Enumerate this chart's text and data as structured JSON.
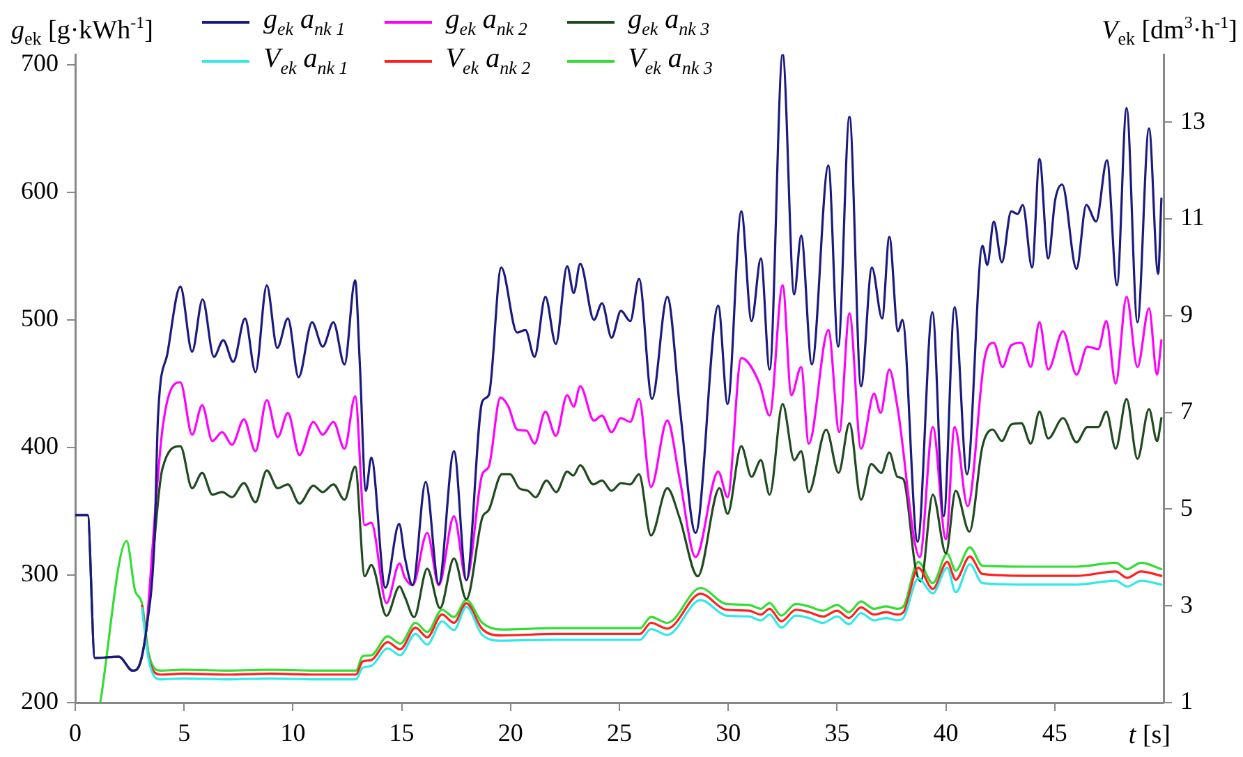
{
  "chart_data": {
    "type": "line",
    "ylabel": "g$_{ek}$ [g·kWh$^{-1}$]",
    "y2label": "V$_{ek}$  [dm$^{3}$·h$^{-1}$]",
    "xlabel": "t [s]",
    "xlim": [
      0,
      50
    ],
    "xticks": [
      0,
      5,
      10,
      15,
      20,
      25,
      30,
      35,
      40,
      45
    ],
    "ylim": [
      200,
      708
    ],
    "yticks": [
      200,
      300,
      400,
      500,
      600,
      700
    ],
    "y2lim": [
      1,
      14.4
    ],
    "y2ticks": [
      1,
      3,
      5,
      7,
      9,
      11,
      13
    ],
    "grid": false,
    "legend": "top",
    "marker": "none",
    "line_style": "solid",
    "series": [
      {
        "name": "g$_{ek}$ a$_{nk 1}$",
        "color": "#1a1a80",
        "x": [
          0,
          0.57,
          0.9,
          2.0,
          2.64,
          2.96,
          3.28,
          3.64,
          3.8,
          4.24,
          4.83,
          5.37,
          5.85,
          6.37,
          6.8,
          7.26,
          7.8,
          8.28,
          8.8,
          9.28,
          9.77,
          10.26,
          10.88,
          11.37,
          11.86,
          12.37,
          12.86,
          13.07,
          13.35,
          13.6,
          14.25,
          14.88,
          15.14,
          15.5,
          16.1,
          16.7,
          17.4,
          17.97,
          18.7,
          19.0,
          19.57,
          20.3,
          20.68,
          21.1,
          21.6,
          22.08,
          22.6,
          22.9,
          23.2,
          23.83,
          24.2,
          24.64,
          25.07,
          25.5,
          25.9,
          26.5,
          27.2,
          27.8,
          28.5,
          29.54,
          29.97,
          30.6,
          31.07,
          31.5,
          31.9,
          32.5,
          33.03,
          33.35,
          33.84,
          34.6,
          35.05,
          35.57,
          36.1,
          36.6,
          37.07,
          37.4,
          37.8,
          38.0,
          38.7,
          39.38,
          39.9,
          40.4,
          40.97,
          41.68,
          41.9,
          42.2,
          42.57,
          43.0,
          43.3,
          43.53,
          43.96,
          44.3,
          44.7,
          45.02,
          45.34,
          46.0,
          46.45,
          46.9,
          47.4,
          47.86,
          48.3,
          48.8,
          49.33,
          49.75,
          49.9
        ],
        "values": [
          347,
          347,
          235,
          236,
          225,
          230,
          259,
          328,
          423,
          474,
          526,
          475,
          516,
          471,
          484,
          467,
          501,
          459,
          527,
          478,
          501,
          455,
          498,
          479,
          498,
          465,
          531,
          467,
          366,
          392,
          290,
          340,
          314,
          292,
          373,
          293,
          397,
          296,
          436,
          441,
          541,
          490,
          492,
          471,
          518,
          481,
          542,
          521,
          544,
          500,
          513,
          486,
          507,
          499,
          532,
          438,
          518,
          427,
          333,
          511,
          434,
          585,
          499,
          548,
          461,
          708,
          520,
          566,
          465,
          621,
          479,
          659,
          448,
          541,
          501,
          565,
          491,
          500,
          326,
          506,
          346,
          510,
          379,
          558,
          543,
          577,
          545,
          585,
          583,
          590,
          541,
          626,
          548,
          594,
          606,
          540,
          590,
          577,
          625,
          527,
          666,
          498,
          650,
          536,
          595
        ]
      },
      {
        "name": "V$_{ek}$ a$_{nk 1}$",
        "color": "#33e8e8",
        "axis": "y2",
        "x": [
          3.07,
          3.39,
          3.92,
          5,
          7,
          9,
          11,
          12.9,
          13.2,
          13.6,
          14.35,
          14.93,
          15.63,
          16.17,
          16.85,
          17.4,
          17.97,
          18.7,
          19.58,
          22,
          25.95,
          26.45,
          27.2,
          28.73,
          29.9,
          30.95,
          31.5,
          31.9,
          32.44,
          33.1,
          33.7,
          34.35,
          35.0,
          35.55,
          36.1,
          36.7,
          37.25,
          37.77,
          38.05,
          38.73,
          39.4,
          40.06,
          40.45,
          41.1,
          41.68,
          44,
          46,
          47.8,
          48.33,
          48.96,
          49.9
        ],
        "values": [
          2.95,
          1.85,
          1.48,
          1.5,
          1.48,
          1.5,
          1.48,
          1.48,
          1.72,
          1.76,
          2.12,
          1.98,
          2.42,
          2.2,
          2.68,
          2.5,
          2.98,
          2.4,
          2.28,
          2.3,
          2.3,
          2.52,
          2.4,
          3.12,
          2.8,
          2.78,
          2.7,
          2.82,
          2.55,
          2.8,
          2.75,
          2.65,
          2.78,
          2.62,
          2.85,
          2.7,
          2.75,
          2.7,
          2.75,
          3.57,
          3.26,
          3.79,
          3.28,
          3.86,
          3.47,
          3.44,
          3.44,
          3.52,
          3.4,
          3.52,
          3.44
        ]
      },
      {
        "name": "g$_{ek}$ a$_{nk 2}$",
        "color": "#ff00ff",
        "x": [
          3.28,
          4.02,
          4.83,
          5.37,
          5.83,
          6.3,
          6.75,
          7.2,
          7.75,
          8.28,
          8.8,
          9.3,
          9.77,
          10.3,
          10.94,
          11.37,
          11.86,
          12.37,
          12.86,
          13.3,
          13.6,
          14.3,
          14.9,
          15.14,
          15.5,
          16.17,
          16.7,
          17.4,
          17.97,
          18.7,
          19.0,
          19.53,
          19.9,
          20.3,
          20.74,
          21.1,
          21.6,
          22.08,
          22.6,
          22.9,
          23.2,
          23.83,
          24.2,
          24.64,
          25.07,
          25.5,
          25.9,
          26.45,
          27.2,
          27.76,
          28.5,
          29.54,
          29.97,
          30.6,
          31.44,
          31.9,
          32.5,
          32.9,
          33.35,
          33.7,
          34.6,
          35.1,
          35.57,
          36.1,
          36.7,
          37.0,
          37.4,
          37.77,
          38.8,
          39.4,
          40.0,
          40.4,
          41.0,
          41.77,
          42.2,
          42.6,
          43.0,
          43.47,
          43.9,
          44.3,
          44.7,
          45.38,
          46.0,
          46.5,
          47.0,
          47.37,
          47.8,
          48.3,
          48.8,
          49.33,
          49.7,
          49.9
        ],
        "values": [
          259,
          416,
          451,
          410,
          433,
          405,
          412,
          402,
          422,
          397,
          437,
          408,
          427,
          394,
          420,
          410,
          420,
          399,
          440,
          339,
          341,
          278,
          309,
          298,
          292,
          333,
          292,
          346,
          296,
          379,
          385,
          439,
          432,
          414,
          413,
          403,
          428,
          409,
          441,
          432,
          448,
          421,
          425,
          412,
          423,
          420,
          438,
          369,
          421,
          376,
          314,
          381,
          361,
          470,
          450,
          425,
          527,
          441,
          463,
          403,
          492,
          412,
          505,
          399,
          442,
          427,
          461,
          432,
          314,
          416,
          328,
          416,
          354,
          469,
          482,
          463,
          480,
          482,
          463,
          498,
          461,
          491,
          457,
          479,
          477,
          499,
          450,
          518,
          463,
          509,
          457,
          484
        ]
      },
      {
        "name": "V$_{ek}$ a$_{nk 2}$",
        "color": "#ff2020",
        "axis": "y2",
        "x": [
          3.07,
          3.39,
          3.92,
          5,
          7,
          9,
          11,
          12.9,
          13.2,
          13.6,
          14.35,
          14.93,
          15.63,
          16.17,
          16.85,
          17.4,
          17.97,
          18.7,
          19.58,
          22,
          25.95,
          26.45,
          27.2,
          28.73,
          29.9,
          30.95,
          31.5,
          31.9,
          32.44,
          33.1,
          33.7,
          34.35,
          35.0,
          35.55,
          36.1,
          36.7,
          37.25,
          37.77,
          38.05,
          38.73,
          39.4,
          40.06,
          40.45,
          41.1,
          41.68,
          44,
          46,
          47.8,
          48.33,
          48.96,
          49.9
        ],
        "values": [
          3.0,
          1.9,
          1.58,
          1.6,
          1.58,
          1.6,
          1.58,
          1.58,
          1.85,
          1.88,
          2.25,
          2.1,
          2.55,
          2.35,
          2.82,
          2.65,
          3.05,
          2.52,
          2.39,
          2.42,
          2.42,
          2.65,
          2.53,
          3.25,
          2.92,
          2.9,
          2.82,
          2.94,
          2.68,
          2.92,
          2.87,
          2.78,
          2.9,
          2.75,
          2.97,
          2.82,
          2.87,
          2.82,
          2.87,
          3.79,
          3.35,
          3.91,
          3.54,
          4.02,
          3.66,
          3.62,
          3.62,
          3.71,
          3.58,
          3.71,
          3.62
        ]
      },
      {
        "name": "g$_{ek}$ a$_{nk 3}$",
        "color": "#204a20",
        "x": [
          0,
          0.57,
          0.9,
          2.0,
          2.64,
          2.96,
          3.28,
          4.0,
          4.83,
          5.37,
          5.83,
          6.3,
          6.75,
          7.2,
          7.75,
          8.28,
          8.8,
          9.3,
          9.77,
          10.3,
          10.94,
          11.37,
          11.86,
          12.37,
          12.86,
          13.3,
          13.6,
          14.3,
          14.9,
          15.14,
          15.57,
          16.17,
          16.76,
          17.4,
          17.97,
          18.7,
          19.0,
          19.6,
          19.97,
          20.4,
          20.8,
          21.15,
          21.65,
          22.1,
          22.6,
          22.88,
          23.2,
          23.8,
          24.2,
          24.64,
          25.07,
          25.5,
          25.9,
          26.45,
          27.2,
          27.76,
          28.6,
          29.6,
          29.97,
          30.6,
          31.07,
          31.5,
          31.9,
          32.5,
          33.03,
          33.35,
          33.7,
          34.5,
          35.07,
          35.57,
          36.1,
          36.57,
          37.03,
          37.4,
          37.77,
          38.05,
          38.6,
          38.85,
          39.4,
          40.0,
          40.45,
          41.08,
          41.68,
          42.15,
          42.57,
          43.0,
          43.47,
          43.9,
          44.3,
          44.7,
          45.38,
          46.0,
          46.5,
          47.0,
          47.37,
          47.8,
          48.3,
          48.8,
          49.33,
          49.7,
          49.9
        ],
        "values": [
          347,
          347,
          235,
          236,
          225,
          230,
          259,
          383,
          401,
          368,
          380,
          363,
          365,
          361,
          372,
          357,
          382,
          368,
          371,
          356,
          370,
          365,
          371,
          359,
          385,
          299,
          308,
          268,
          291,
          283,
          267,
          305,
          274,
          313,
          281,
          345,
          351,
          379,
          379,
          368,
          366,
          361,
          374,
          365,
          381,
          378,
          386,
          371,
          374,
          366,
          372,
          371,
          379,
          331,
          368,
          345,
          299,
          368,
          348,
          401,
          377,
          390,
          363,
          434,
          390,
          397,
          365,
          414,
          380,
          419,
          359,
          387,
          380,
          396,
          377,
          375,
          306,
          295,
          363,
          317,
          366,
          334,
          401,
          414,
          405,
          418,
          419,
          403,
          428,
          407,
          423,
          404,
          416,
          416,
          428,
          399,
          438,
          391,
          430,
          405,
          423
        ]
      },
      {
        "name": "V$_{ek}$ a$_{nk 3}$",
        "color": "#33dd33",
        "axis": "y2",
        "x": [
          1.15,
          2.36,
          2.74,
          3.07,
          3.39,
          3.92,
          5,
          7,
          9,
          11,
          12.9,
          13.2,
          13.6,
          14.35,
          14.93,
          15.63,
          16.17,
          16.85,
          17.4,
          17.97,
          18.7,
          19.58,
          22,
          25.95,
          26.45,
          27.2,
          28.73,
          29.9,
          30.95,
          31.5,
          31.9,
          32.44,
          33.1,
          33.7,
          34.35,
          35.0,
          35.55,
          36.1,
          36.7,
          37.25,
          37.77,
          38.05,
          38.73,
          39.4,
          40.06,
          40.45,
          41.1,
          41.68,
          44,
          46,
          47.8,
          48.33,
          48.96,
          49.9
        ],
        "values": [
          1,
          4.34,
          3.33,
          3.04,
          1.98,
          1.66,
          1.68,
          1.66,
          1.68,
          1.66,
          1.66,
          1.96,
          1.98,
          2.37,
          2.22,
          2.65,
          2.46,
          2.92,
          2.77,
          3.12,
          2.65,
          2.51,
          2.54,
          2.54,
          2.77,
          2.65,
          3.37,
          3.04,
          3.02,
          2.94,
          3.06,
          2.8,
          3.04,
          2.99,
          2.9,
          3.02,
          2.87,
          3.09,
          2.94,
          2.99,
          2.94,
          2.99,
          3.91,
          3.47,
          4.08,
          3.73,
          4.21,
          3.83,
          3.81,
          3.81,
          3.89,
          3.76,
          3.89,
          3.76
        ]
      }
    ]
  }
}
